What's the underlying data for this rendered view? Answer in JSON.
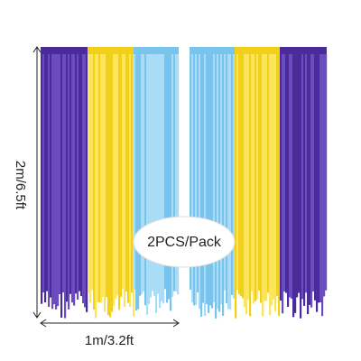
{
  "dimensions": {
    "height": "2m/6.5ft",
    "width": "1m/3.2ft"
  },
  "badge": "2PCS/Pack"
}
